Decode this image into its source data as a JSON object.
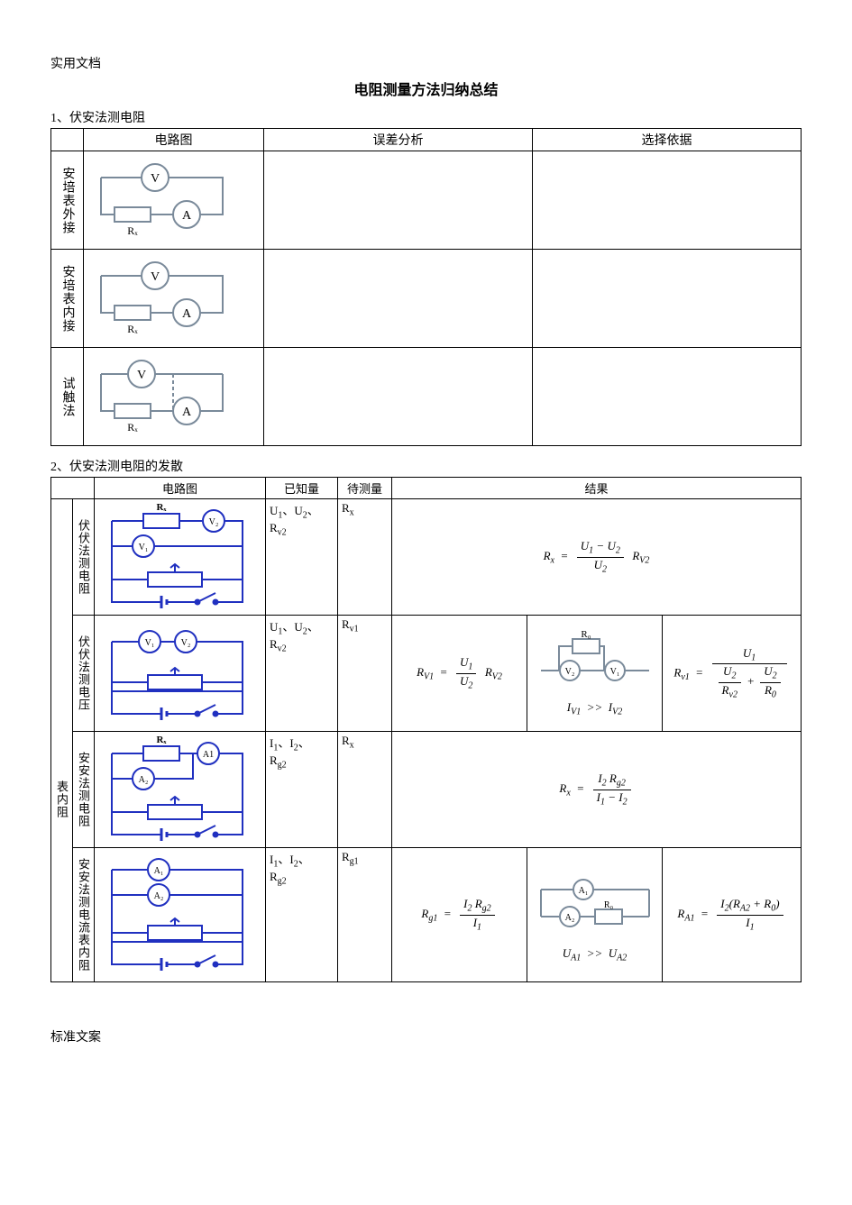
{
  "header_note": "实用文档",
  "title": "电阻测量方法归纳总结",
  "section1": {
    "heading": "1、伏安法测电阻",
    "cols": [
      "电路图",
      "误差分析",
      "选择依据"
    ],
    "rows": [
      {
        "label": "安培表外接",
        "rlabel": "Rₓ"
      },
      {
        "label": "安培表内接",
        "rlabel": "Rₓ"
      },
      {
        "label": "试触法",
        "rlabel": "Rₓ"
      }
    ]
  },
  "section2": {
    "heading": "2、伏安法测电阻的发散",
    "cols": [
      "电路图",
      "已知量",
      "待测量",
      "结果"
    ],
    "rows": [
      {
        "rowlabel": "伏伏法测电阻",
        "known_html": "U<sub>1</sub>、U<sub>2</sub>、<br>R<sub>v2</sub>",
        "unknown_html": "R<sub>x</sub>",
        "result_formula": "Rx = (U1-U2)/U2 · Rv2"
      },
      {
        "sidelabel": "表内阻",
        "rowlabel": "伏伏法测电压",
        "known_html": "U<sub>1</sub>、U<sub>2</sub>、<br>R<sub>v2</sub>",
        "unknown_html": "R<sub>v1</sub>",
        "result_formula": "Rv1 = U1/U2 · Rv2",
        "extra_cond": "I_V1 >> I_V2",
        "extra_formula": "Rv1 = U1 / (U2/Rv2 + U2/R0)"
      },
      {
        "rowlabel": "安安法测电阻",
        "known_html": "I<sub>1</sub>、I<sub>2</sub>、<br>R<sub>g2</sub>",
        "unknown_html": "R<sub>x</sub>",
        "result_formula": "Rx = I2·Rg2 / (I1-I2)"
      },
      {
        "rowlabel": "安安法测电流表内阻",
        "known_html": "I<sub>1</sub>、I<sub>2</sub>、<br>R<sub>g2</sub>",
        "unknown_html": "R<sub>g1</sub>",
        "result_formula": "Rg1 = I2·Rg2 / I1",
        "extra_cond": "U_A1 >> U_A2",
        "extra_formula": "R_A1 = I2(R_A2+R0)/I1"
      }
    ]
  },
  "footer": "标准文案",
  "colors": {
    "circuit_gray": "#7a8a9a",
    "circuit_blue": "#2030c0",
    "text": "#000000"
  }
}
